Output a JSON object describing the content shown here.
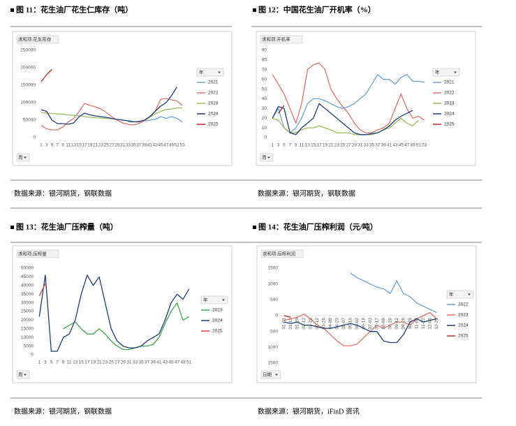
{
  "chart_data": [
    {
      "type": "line",
      "title": "图 11：花生油厂花生仁库存（吨）",
      "source": "数据来源：银河期货，钢联数据",
      "field_label": "求和项:花生库存",
      "legend_title": "年",
      "axis_button": "周",
      "categories": [
        1,
        3,
        5,
        7,
        9,
        11,
        13,
        15,
        17,
        19,
        21,
        23,
        25,
        27,
        29,
        31,
        33,
        35,
        37,
        39,
        41,
        43,
        45,
        47,
        49,
        51,
        53
      ],
      "ylim": [
        0,
        250000
      ],
      "yticks": [
        0,
        50000,
        100000,
        150000,
        200000,
        250000
      ],
      "grid": false,
      "series": [
        {
          "name": "2021",
          "color": "#6a9fd8",
          "values": [
            null,
            null,
            null,
            null,
            null,
            null,
            null,
            null,
            null,
            null,
            null,
            null,
            null,
            null,
            null,
            null,
            45000,
            45000,
            47000,
            48000,
            50000,
            52000,
            60000,
            55000,
            60000,
            55000,
            45000
          ]
        },
        {
          "name": "2022",
          "color": "#e0706a",
          "values": [
            35000,
            25000,
            22000,
            22000,
            30000,
            45000,
            55000,
            75000,
            98000,
            92000,
            88000,
            82000,
            72000,
            60000,
            50000,
            42000,
            38000,
            36000,
            40000,
            48000,
            58000,
            75000,
            110000,
            112000,
            108000,
            105000,
            92000
          ]
        },
        {
          "name": "2023",
          "color": "#9bbb59",
          "values": [
            72000,
            70000,
            69000,
            68000,
            67000,
            65000,
            64000,
            62000,
            60000,
            58000,
            57000,
            56000,
            55000,
            54000,
            52000,
            50000,
            48000,
            46000,
            45000,
            50000,
            58000,
            68000,
            75000,
            80000,
            82000,
            85000,
            85000
          ]
        },
        {
          "name": "2024",
          "color": "#1f3a7a",
          "values": [
            80000,
            75000,
            50000,
            40000,
            40000,
            38000,
            42000,
            60000,
            70000,
            65000,
            62000,
            60000,
            58000,
            55000,
            52000,
            50000,
            48000,
            45000,
            45000,
            50000,
            60000,
            75000,
            90000,
            100000,
            120000,
            145000,
            null
          ]
        },
        {
          "name": "2025",
          "color": "#c0272d",
          "values": [
            160000,
            180000,
            195000,
            null,
            null,
            null,
            null,
            null,
            null,
            null,
            null,
            null,
            null,
            null,
            null,
            null,
            null,
            null,
            null,
            null,
            null,
            null,
            null,
            null,
            null,
            null,
            null
          ]
        }
      ]
    },
    {
      "type": "line",
      "title": "图 12：中国花生油厂开机率（%）",
      "source": "数据来源：银河期货，钢联数据",
      "field_label": "求和项:开机率",
      "legend_title": "年",
      "axis_button": "周",
      "categories": [
        1,
        3,
        5,
        7,
        9,
        11,
        13,
        15,
        17,
        19,
        21,
        23,
        25,
        27,
        29,
        31,
        33,
        35,
        37,
        39,
        41,
        43,
        45,
        47,
        49,
        51,
        53
      ],
      "ylim": [
        0,
        90
      ],
      "yticks": [
        0,
        10,
        20,
        30,
        40,
        50,
        60,
        70,
        80,
        90
      ],
      "grid": false,
      "series": [
        {
          "name": "2021",
          "color": "#6a9fd8",
          "values": [
            20,
            30,
            10,
            5,
            10,
            20,
            35,
            40,
            40,
            38,
            35,
            32,
            30,
            32,
            35,
            40,
            45,
            55,
            65,
            60,
            60,
            55,
            62,
            65,
            58,
            58,
            57
          ]
        },
        {
          "name": "2022",
          "color": "#e0706a",
          "values": [
            65,
            55,
            45,
            30,
            15,
            35,
            70,
            75,
            77,
            70,
            50,
            40,
            32,
            25,
            15,
            8,
            5,
            5,
            8,
            10,
            15,
            30,
            45,
            30,
            20,
            22,
            18
          ]
        },
        {
          "name": "2023",
          "color": "#9bbb59",
          "values": [
            20,
            18,
            10,
            5,
            5,
            8,
            10,
            10,
            12,
            10,
            8,
            5,
            5,
            5,
            3,
            3,
            3,
            3,
            5,
            8,
            10,
            15,
            20,
            15,
            12,
            18,
            null
          ]
        },
        {
          "name": "2024",
          "color": "#1f3a7a",
          "values": [
            20,
            32,
            30,
            5,
            3,
            10,
            15,
            20,
            35,
            30,
            25,
            20,
            15,
            10,
            5,
            3,
            3,
            4,
            5,
            8,
            12,
            18,
            22,
            25,
            28,
            null,
            null
          ]
        },
        {
          "name": "2025",
          "color": "#c0272d",
          "values": [
            null,
            25,
            33,
            null,
            null,
            null,
            null,
            null,
            null,
            null,
            null,
            null,
            null,
            null,
            null,
            null,
            null,
            null,
            null,
            null,
            null,
            null,
            null,
            null,
            null,
            null,
            null
          ]
        }
      ]
    },
    {
      "type": "line",
      "title": "图 13：花生油厂压榨量（吨）",
      "source": "数据来源：银河期货，钢联数据",
      "field_label": "求和项:压榨量",
      "legend_title": "年",
      "axis_button": "周",
      "categories": [
        1,
        3,
        5,
        7,
        9,
        11,
        13,
        15,
        17,
        19,
        21,
        23,
        25,
        27,
        29,
        31,
        33,
        35,
        37,
        39,
        41,
        43,
        45,
        47,
        49,
        51
      ],
      "ylim": [
        0,
        50000
      ],
      "yticks": [
        0,
        5000,
        10000,
        15000,
        20000,
        25000,
        30000,
        35000,
        40000,
        45000,
        50000
      ],
      "grid": false,
      "series": [
        {
          "name": "2023",
          "color": "#3aa94a",
          "values": [
            null,
            null,
            null,
            null,
            15000,
            17000,
            19000,
            15000,
            12000,
            12000,
            15000,
            12000,
            8000,
            5000,
            3000,
            3000,
            4000,
            5000,
            5000,
            6000,
            10000,
            18000,
            25000,
            30000,
            20000,
            22000
          ]
        },
        {
          "name": "2024",
          "color": "#1f3a7a",
          "values": [
            22000,
            46000,
            2000,
            2000,
            10000,
            12000,
            20000,
            35000,
            46000,
            40000,
            45000,
            30000,
            15000,
            8000,
            5000,
            4000,
            4000,
            5000,
            8000,
            10000,
            12000,
            20000,
            30000,
            35000,
            32000,
            38000
          ]
        },
        {
          "name": "2025",
          "color": "#e0403a",
          "values": [
            34000,
            41000,
            null,
            null,
            null,
            null,
            null,
            null,
            null,
            null,
            null,
            null,
            null,
            null,
            null,
            null,
            null,
            null,
            null,
            null,
            null,
            null,
            null,
            null,
            null,
            null
          ]
        }
      ]
    },
    {
      "type": "line",
      "title": "图 14：花生油厂压榨利润（元/吨）",
      "source": "数据来源：银河期货，iFinD 资讯",
      "field_label": "求和项:压榨利润",
      "legend_title": "年",
      "axis_button": "日期",
      "categories": [
        "01-01",
        "01-15",
        "01-29",
        "02-12",
        "02-26",
        "03-12",
        "03-26",
        "04-09",
        "04-23",
        "05-07",
        "05-16",
        "06-02",
        "06-19",
        "07-03",
        "07-17",
        "08-08",
        "08-26",
        "09-12",
        "09-26",
        "10-25",
        "11-08",
        "11-22",
        "12-06",
        "12-20"
      ],
      "ylim": [
        -1500,
        1500
      ],
      "yticks": [
        {
          "value": -1500,
          "label": "1500"
        },
        {
          "value": -1000,
          "label": "1000"
        },
        {
          "value": -500,
          "label": "500"
        },
        0,
        500,
        1000,
        1500
      ],
      "grid": false,
      "series": [
        {
          "name": "2022",
          "color": "#6a9fd8",
          "values": [
            null,
            null,
            null,
            null,
            null,
            null,
            null,
            null,
            null,
            null,
            1350,
            1200,
            1100,
            1000,
            900,
            850,
            700,
            1100,
            700,
            600,
            400,
            300,
            200,
            100
          ]
        },
        {
          "name": "2023",
          "color": "#e0706a",
          "values": [
            -150,
            -100,
            -50,
            50,
            -100,
            -300,
            -400,
            -600,
            -800,
            -950,
            -950,
            -900,
            -700,
            -500,
            -300,
            -400,
            -300,
            -200,
            -200,
            -300,
            -100,
            0,
            100,
            -100
          ]
        },
        {
          "name": "2024",
          "color": "#1f3a7a",
          "values": [
            -200,
            -250,
            -200,
            -300,
            -300,
            -350,
            -400,
            -400,
            -350,
            -300,
            -250,
            -300,
            -400,
            -500,
            -500,
            -800,
            -850,
            -850,
            -600,
            -200,
            -100,
            -200,
            -150,
            -100
          ]
        },
        {
          "name": "2025",
          "color": "#c0272d",
          "values": [
            0,
            -50,
            null,
            null,
            null,
            null,
            null,
            null,
            null,
            null,
            null,
            null,
            null,
            null,
            null,
            null,
            null,
            null,
            null,
            null,
            null,
            null,
            null,
            null
          ]
        }
      ]
    }
  ]
}
